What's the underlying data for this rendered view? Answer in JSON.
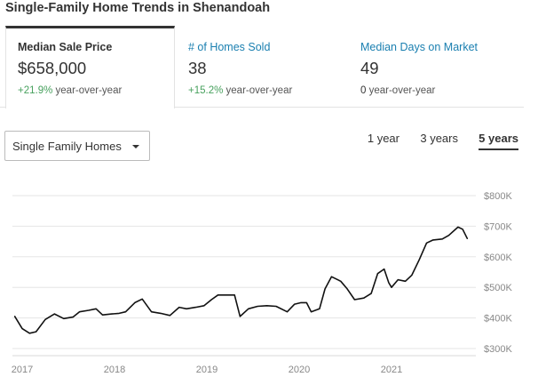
{
  "page": {
    "title": "Single-Family Home Trends in Shenandoah"
  },
  "stats": [
    {
      "label": "Median Sale Price",
      "value": "$658,000",
      "change_pct": "+21.9%",
      "change_text": "year-over-year"
    },
    {
      "label": "# of Homes Sold",
      "value": "38",
      "change_pct": "+15.2%",
      "change_text": "year-over-year"
    },
    {
      "label": "Median Days on Market",
      "value": "49",
      "change_pct": "0",
      "change_text": "year-over-year"
    }
  ],
  "controls": {
    "property_type": "Single Family Homes",
    "ranges": [
      {
        "label": "1 year"
      },
      {
        "label": "3 years"
      },
      {
        "label": "5 years"
      }
    ]
  },
  "colors": {
    "link": "#1a7fb0",
    "positive": "#48a15e",
    "line": "#111111",
    "grid": "#e5e5e5"
  },
  "chart_data": {
    "type": "line",
    "title": "",
    "xlabel": "",
    "ylabel": "",
    "xlim": [
      2017.0,
      2021.95
    ],
    "ylim": [
      270000,
      830000
    ],
    "x_ticks": [
      {
        "value": 2017,
        "label": "2017"
      },
      {
        "value": 2018,
        "label": "2018"
      },
      {
        "value": 2019,
        "label": "2019"
      },
      {
        "value": 2020,
        "label": "2020"
      },
      {
        "value": 2021,
        "label": "2021"
      }
    ],
    "y_ticks": [
      {
        "value": 300000,
        "label": "$300K"
      },
      {
        "value": 400000,
        "label": "$400K"
      },
      {
        "value": 500000,
        "label": "$500K"
      },
      {
        "value": 600000,
        "label": "$600K"
      },
      {
        "value": 700000,
        "label": "$700K"
      },
      {
        "value": 800000,
        "label": "$800K"
      }
    ],
    "grid": true,
    "series": [
      {
        "values": [
          [
            2016.92,
            405000
          ],
          [
            2017.0,
            365000
          ],
          [
            2017.08,
            350000
          ],
          [
            2017.15,
            355000
          ],
          [
            2017.25,
            395000
          ],
          [
            2017.35,
            413000
          ],
          [
            2017.45,
            398000
          ],
          [
            2017.55,
            403000
          ],
          [
            2017.62,
            420000
          ],
          [
            2017.72,
            425000
          ],
          [
            2017.8,
            430000
          ],
          [
            2017.87,
            410000
          ],
          [
            2017.97,
            413000
          ],
          [
            2018.05,
            415000
          ],
          [
            2018.12,
            420000
          ],
          [
            2018.22,
            450000
          ],
          [
            2018.3,
            462000
          ],
          [
            2018.4,
            420000
          ],
          [
            2018.5,
            415000
          ],
          [
            2018.6,
            408000
          ],
          [
            2018.7,
            435000
          ],
          [
            2018.78,
            430000
          ],
          [
            2018.88,
            435000
          ],
          [
            2018.97,
            440000
          ],
          [
            2019.05,
            460000
          ],
          [
            2019.12,
            475000
          ],
          [
            2019.22,
            475000
          ],
          [
            2019.3,
            475000
          ],
          [
            2019.36,
            405000
          ],
          [
            2019.45,
            430000
          ],
          [
            2019.55,
            438000
          ],
          [
            2019.65,
            440000
          ],
          [
            2019.75,
            438000
          ],
          [
            2019.87,
            420000
          ],
          [
            2019.95,
            445000
          ],
          [
            2020.02,
            450000
          ],
          [
            2020.08,
            450000
          ],
          [
            2020.13,
            420000
          ],
          [
            2020.22,
            430000
          ],
          [
            2020.28,
            495000
          ],
          [
            2020.35,
            535000
          ],
          [
            2020.45,
            520000
          ],
          [
            2020.52,
            495000
          ],
          [
            2020.6,
            460000
          ],
          [
            2020.7,
            465000
          ],
          [
            2020.78,
            480000
          ],
          [
            2020.85,
            545000
          ],
          [
            2020.92,
            560000
          ],
          [
            2020.97,
            515000
          ],
          [
            2021.0,
            500000
          ],
          [
            2021.07,
            525000
          ],
          [
            2021.15,
            520000
          ],
          [
            2021.22,
            540000
          ],
          [
            2021.3,
            590000
          ],
          [
            2021.38,
            645000
          ],
          [
            2021.45,
            655000
          ],
          [
            2021.55,
            658000
          ],
          [
            2021.62,
            670000
          ],
          [
            2021.72,
            697000
          ],
          [
            2021.77,
            690000
          ],
          [
            2021.82,
            660000
          ]
        ]
      }
    ]
  }
}
